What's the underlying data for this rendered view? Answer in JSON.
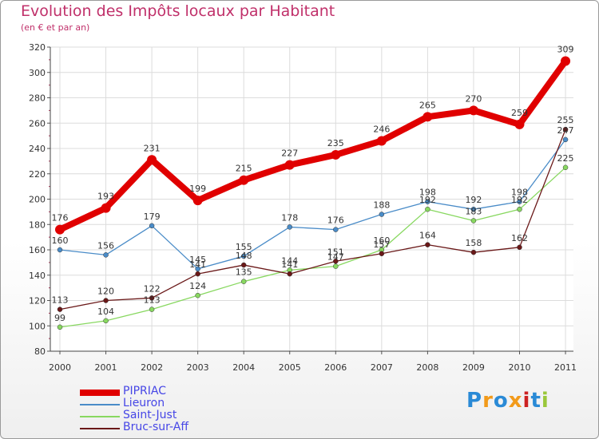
{
  "chart_data": {
    "type": "line",
    "title": "Evolution des Impôts locaux par Habitant",
    "subtitle": "(en € et par an)",
    "xlabel": "",
    "ylabel": "",
    "x": [
      "2000",
      "2001",
      "2002",
      "2003",
      "2004",
      "2005",
      "2006",
      "2007",
      "2008",
      "2009",
      "2010",
      "2011"
    ],
    "ylim": [
      80,
      320
    ],
    "yticks": [
      "80",
      "100",
      "120",
      "140",
      "160",
      "180",
      "200",
      "220",
      "240",
      "260",
      "280",
      "300",
      "320"
    ],
    "grid": true,
    "legend_position": "bottom-left",
    "series": [
      {
        "name": "PIPRIAC",
        "color": "#e00000",
        "values": [
          176,
          193,
          231,
          199,
          215,
          227,
          235,
          246,
          265,
          270,
          259,
          309
        ]
      },
      {
        "name": "Lieuron",
        "color": "#4a8cc8",
        "values": [
          160,
          156,
          179,
          145,
          155,
          178,
          176,
          188,
          198,
          192,
          198,
          247
        ]
      },
      {
        "name": "Saint-Just",
        "color": "#88d860",
        "values": [
          99,
          104,
          113,
          124,
          135,
          144,
          147,
          160,
          192,
          183,
          192,
          225
        ]
      },
      {
        "name": "Bruc-sur-Aff",
        "color": "#6a1818",
        "values": [
          113,
          120,
          122,
          141,
          148,
          141,
          151,
          157,
          164,
          158,
          162,
          255
        ]
      }
    ]
  },
  "logo": {
    "text": "Proxiti",
    "colors": [
      "#2a8ad6",
      "#f29a1a",
      "#2a8ad6",
      "#f29a1a",
      "#cc2222",
      "#2a8ad6",
      "#9ac83a"
    ]
  }
}
